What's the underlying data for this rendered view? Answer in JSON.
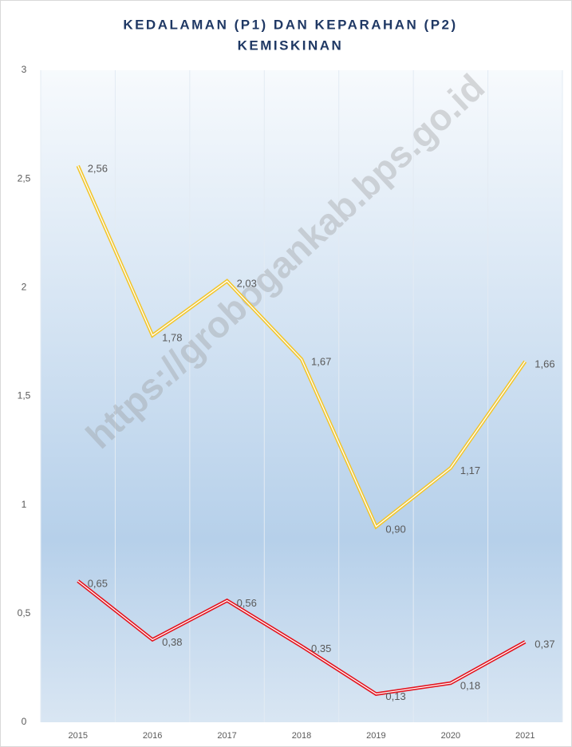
{
  "chart_data": {
    "type": "line",
    "title": [
      "KEDALAMAN (P1) DAN KEPARAHAN (P2)",
      "KEMISKINAN"
    ],
    "annotations": [
      "https://grobogankab.bps.go.id"
    ],
    "categories": [
      "2015",
      "2016",
      "2017",
      "2018",
      "2019",
      "2020",
      "2021"
    ],
    "series": [
      {
        "color": "#f2c62e",
        "values": [
          2.56,
          1.78,
          2.03,
          1.67,
          0.9,
          1.17,
          1.66
        ],
        "value_labels": [
          "2,56",
          "1,78",
          "2,03",
          "1,67",
          "0,90",
          "1,17",
          "1,66"
        ]
      },
      {
        "color": "#e3141e",
        "values": [
          0.65,
          0.38,
          0.56,
          0.35,
          0.13,
          0.18,
          0.37
        ],
        "value_labels": [
          "0,65",
          "0,38",
          "0,56",
          "0,35",
          "0,13",
          "0,18",
          "0,37"
        ]
      }
    ],
    "ylim": [
      0,
      3
    ],
    "yticks": [
      0,
      {
        "value": 0.5,
        "label": "0,5"
      },
      1,
      {
        "value": 1.5,
        "label": "1,5"
      },
      2,
      {
        "value": 2.5,
        "label": "2,5"
      },
      3
    ],
    "grid": true
  }
}
